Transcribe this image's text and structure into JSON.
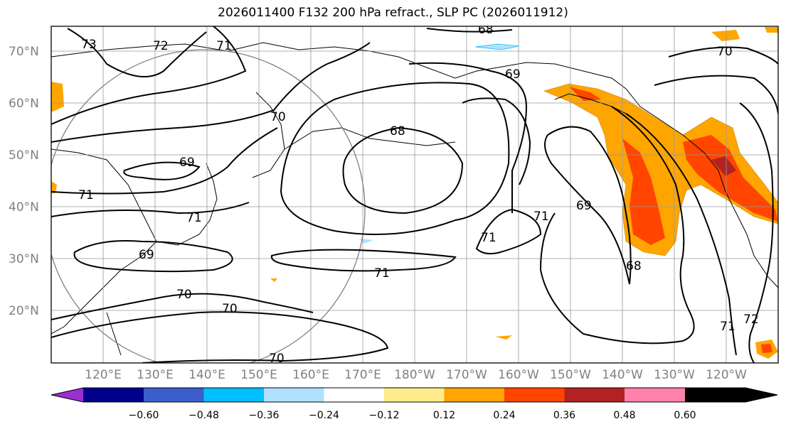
{
  "title": "2026011400 F132 200 hPa refract., SLP PC (2026011912)",
  "lat_labels": [
    "70°N",
    "60°N",
    "50°N",
    "40°N",
    "30°N",
    "20°N"
  ],
  "lon_labels": [
    "120°E",
    "130°E",
    "140°E",
    "150°E",
    "160°E",
    "170°E",
    "180°W",
    "170°W",
    "160°W",
    "150°W",
    "140°W",
    "130°W",
    "120°W"
  ],
  "contour_labels": [
    "73",
    "72",
    "71",
    "70",
    "69",
    "71",
    "71",
    "69",
    "70",
    "70",
    "70",
    "68",
    "68",
    "69",
    "71",
    "71",
    "71",
    "69",
    "68",
    "70",
    "71",
    "72"
  ],
  "colorbar": {
    "ticks": [
      "−0.60",
      "−0.48",
      "−0.36",
      "−0.24",
      "−0.12",
      "0.12",
      "0.24",
      "0.36",
      "0.48",
      "0.60"
    ],
    "colors": [
      "#9b30d0",
      "#00008b",
      "#3a5fcd",
      "#00bfff",
      "#b0e2ff",
      "#ffffff",
      "#ffec8b",
      "#ffa500",
      "#ff4500",
      "#b22222",
      "#ff82ab"
    ]
  }
}
